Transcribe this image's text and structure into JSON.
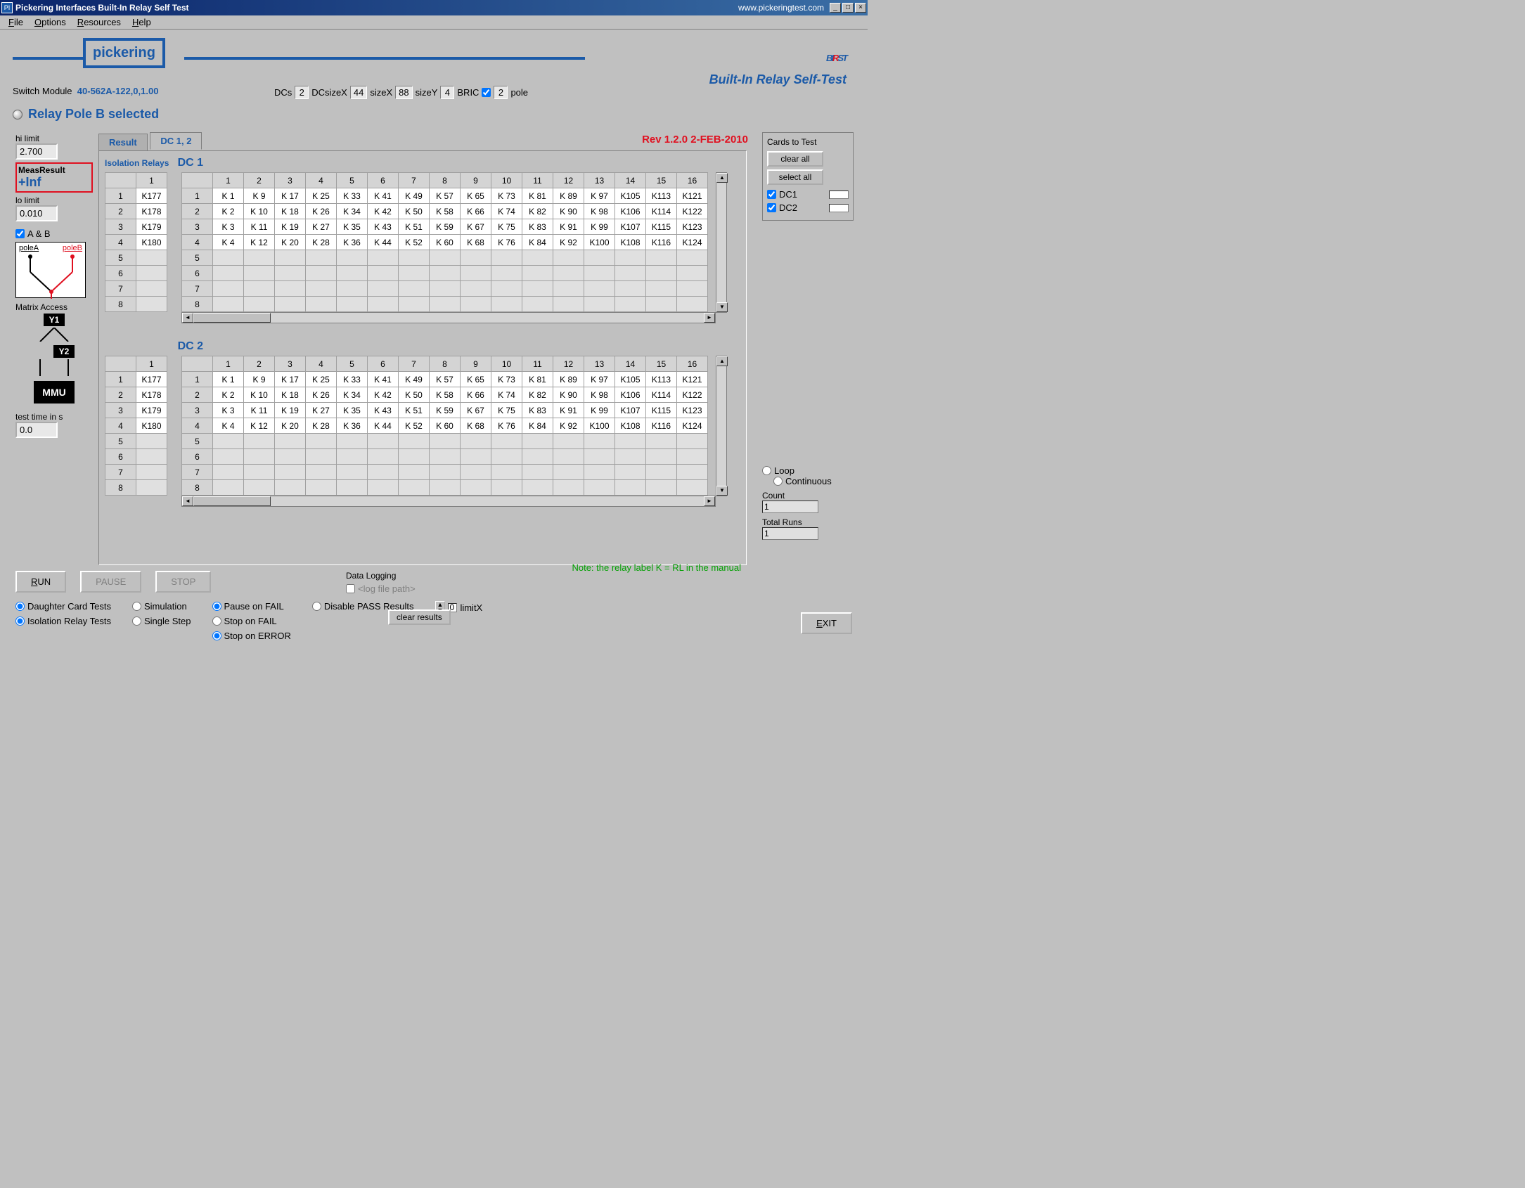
{
  "window": {
    "title": "Pickering Interfaces Built-In Relay Self Test",
    "url": "www.pickeringtest.com"
  },
  "menu": {
    "file": "File",
    "options": "Options",
    "resources": "Resources",
    "help": "Help"
  },
  "logo": {
    "brand": "pickering",
    "big1": "BI",
    "big2": "R",
    "big3": "ST",
    "sub": "Built-In Relay Self-Test"
  },
  "module": {
    "label": "Switch Module",
    "value": "40-562A-122,0,1.00"
  },
  "dcparams": {
    "dcs_label": "DCs",
    "dcs": "2",
    "dcsizex_label": "DCsizeX",
    "dcsizex": "44",
    "sizex_label": "sizeX",
    "sizex": "88",
    "sizey_label": "sizeY",
    "sizey": "4",
    "bric_label": "BRIC",
    "pole_val": "2",
    "pole_label": "pole"
  },
  "status": "Relay Pole B selected",
  "revision": "Rev 1.2.0  2-FEB-2010",
  "limits": {
    "hi_label": "hi limit",
    "hi": "2.700",
    "meas_label": "MeasResult",
    "meas": "+Inf",
    "lo_label": "lo limit",
    "lo": "0.010"
  },
  "poles": {
    "ab_label": "A & B",
    "a": "poleA",
    "b": "poleB"
  },
  "matrix": {
    "label": "Matrix Access",
    "y1": "Y1",
    "y2": "Y2",
    "mmu": "MMU"
  },
  "testtime": {
    "label": "test time in s",
    "value": "0.0"
  },
  "tabs": {
    "result": "Result",
    "dc12": "DC 1, 2"
  },
  "iso_label": "Isolation Relays",
  "dc1": {
    "title": "DC 1"
  },
  "dc2": {
    "title": "DC 2"
  },
  "iso_rows": [
    "K177",
    "K178",
    "K179",
    "K180",
    "",
    "",
    "",
    ""
  ],
  "main_cols": [
    "1",
    "2",
    "3",
    "4",
    "5",
    "6",
    "7",
    "8",
    "9",
    "10",
    "11",
    "12",
    "13",
    "14",
    "15",
    "16"
  ],
  "main_rows": [
    [
      "K 1",
      "K 9",
      "K 17",
      "K 25",
      "K 33",
      "K 41",
      "K 49",
      "K 57",
      "K 65",
      "K 73",
      "K 81",
      "K 89",
      "K 97",
      "K105",
      "K113",
      "K121"
    ],
    [
      "K 2",
      "K 10",
      "K 18",
      "K 26",
      "K 34",
      "K 42",
      "K 50",
      "K 58",
      "K 66",
      "K 74",
      "K 82",
      "K 90",
      "K 98",
      "K106",
      "K114",
      "K122"
    ],
    [
      "K 3",
      "K 11",
      "K 19",
      "K 27",
      "K 35",
      "K 43",
      "K 51",
      "K 59",
      "K 67",
      "K 75",
      "K 83",
      "K 91",
      "K 99",
      "K107",
      "K115",
      "K123"
    ],
    [
      "K 4",
      "K 12",
      "K 20",
      "K 28",
      "K 36",
      "K 44",
      "K 52",
      "K 60",
      "K 68",
      "K 76",
      "K 84",
      "K 92",
      "K100",
      "K108",
      "K116",
      "K124"
    ],
    [
      "",
      "",
      "",
      "",
      "",
      "",
      "",
      "",
      "",
      "",
      "",
      "",
      "",
      "",
      "",
      ""
    ],
    [
      "",
      "",
      "",
      "",
      "",
      "",
      "",
      "",
      "",
      "",
      "",
      "",
      "",
      "",
      "",
      ""
    ],
    [
      "",
      "",
      "",
      "",
      "",
      "",
      "",
      "",
      "",
      "",
      "",
      "",
      "",
      "",
      "",
      ""
    ],
    [
      "",
      "",
      "",
      "",
      "",
      "",
      "",
      "",
      "",
      "",
      "",
      "",
      "",
      "",
      "",
      ""
    ]
  ],
  "note": "Note: the relay label K = RL in the manual",
  "cards": {
    "title": "Cards to Test",
    "clear": "clear all",
    "select": "select all",
    "dc1": "DC1",
    "dc2": "DC2"
  },
  "loop": {
    "loop": "Loop",
    "cont": "Continuous",
    "count_label": "Count",
    "count": "1",
    "total_label": "Total Runs",
    "total": "1"
  },
  "buttons": {
    "run": "RUN",
    "pause": "PAUSE",
    "stop": "STOP",
    "exit": "EXIT"
  },
  "datalog": {
    "title": "Data Logging",
    "placeholder": "<log file path>",
    "clear": "clear results"
  },
  "radios": {
    "dct": "Daughter Card Tests",
    "irt": "Isolation Relay Tests",
    "sim": "Simulation",
    "ss": "Single Step",
    "pof": "Pause on FAIL",
    "sof": "Stop on FAIL",
    "soe": "Stop on ERROR",
    "dpr": "Disable PASS Results",
    "limitx": "limitX",
    "limitx_val": "0"
  },
  "colors": {
    "accent": "#1b5aa8",
    "danger": "#e01020",
    "ok": "#00a000"
  }
}
